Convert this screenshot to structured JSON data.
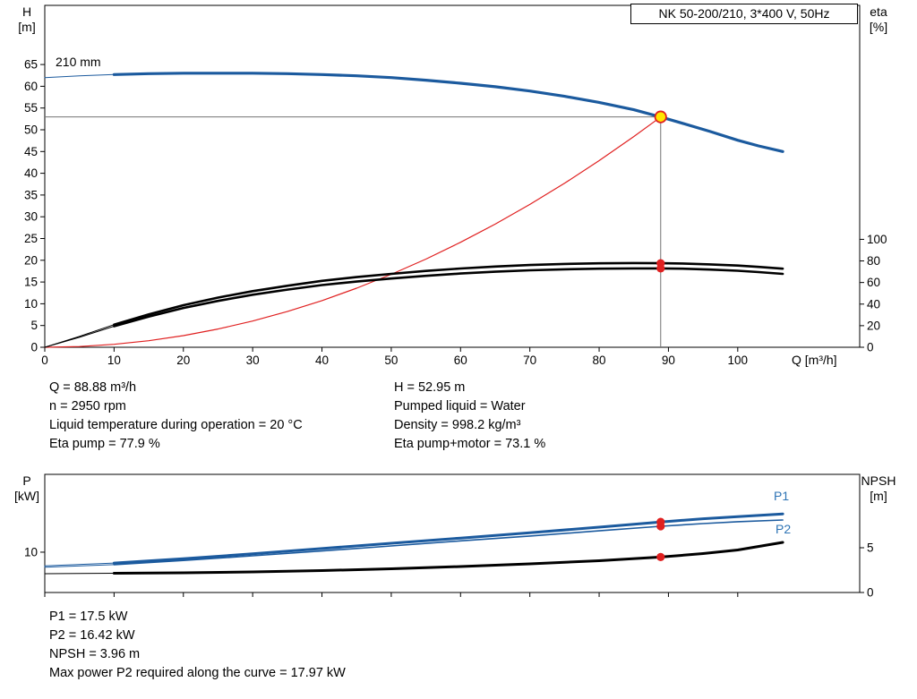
{
  "operating_info": {
    "left": [
      "Q = 88.88 m³/h",
      "n = 2950 rpm",
      "Liquid temperature during operation = 20 °C",
      "Eta pump = 77.9 %"
    ],
    "right": [
      "H = 52.95 m",
      "Pumped liquid = Water",
      "Density = 998.2 kg/m³",
      "Eta pump+motor = 73.1 %"
    ]
  },
  "result_info": [
    "P1 = 17.5 kW",
    "P2 = 16.42 kW",
    "NPSH = 3.96 m",
    "Max power P2 required along the curve = 17.97 kW"
  ],
  "chart_data": [
    {
      "type": "line",
      "title": "NK 50-200/210, 3*400 V, 50Hz",
      "grid": false,
      "x_axis": {
        "label": "Q [m³/h]",
        "range": [
          0,
          117.6
        ],
        "ticks": [
          0,
          10,
          20,
          30,
          40,
          50,
          60,
          70,
          80,
          90,
          100
        ],
        "show_labels": true
      },
      "y_left": {
        "label_lines": [
          "H",
          "[m]"
        ],
        "range": [
          0,
          78.6
        ],
        "ticks": [
          0,
          5,
          10,
          15,
          20,
          25,
          30,
          35,
          40,
          45,
          50,
          55,
          60,
          65
        ]
      },
      "y_right": {
        "label_lines": [
          "eta",
          "[%]"
        ],
        "range": [
          0,
          316.8
        ],
        "ticks": [
          0,
          20,
          40,
          60,
          80,
          100
        ]
      },
      "crosshair": {
        "x": 88.88,
        "y": 52.95,
        "color": "#737373"
      },
      "series": [
        {
          "name": "210 mm",
          "axis": "left",
          "color": "#1b5a9e",
          "width": 3.2,
          "thin_until": 10,
          "x": [
            0,
            5,
            10,
            15,
            20,
            25,
            30,
            35,
            40,
            45,
            50,
            55,
            60,
            65,
            70,
            75,
            80,
            85,
            88.88,
            92,
            96,
            100,
            103,
            106.5
          ],
          "y": [
            62,
            62.4,
            62.7,
            62.9,
            63,
            63,
            63,
            62.9,
            62.7,
            62.4,
            62,
            61.4,
            60.7,
            59.9,
            58.9,
            57.7,
            56.3,
            54.6,
            52.95,
            51.5,
            49.6,
            47.6,
            46.3,
            45
          ]
        },
        {
          "name": "System curve",
          "axis": "left",
          "color": "#e02020",
          "width": 1.2,
          "x": [
            0,
            5,
            10,
            15,
            20,
            25,
            30,
            35,
            40,
            45,
            50,
            55,
            60,
            65,
            70,
            75,
            80,
            85,
            88.88
          ],
          "y": [
            0,
            0.17,
            0.67,
            1.51,
            2.68,
            4.19,
            6.03,
            8.21,
            10.72,
            13.57,
            16.76,
            20.27,
            24.13,
            28.32,
            32.84,
            37.7,
            42.9,
            48.43,
            52.95
          ]
        },
        {
          "name": "Eta pump",
          "axis": "right",
          "color": "#000000",
          "width": 2.6,
          "thin_until": 10,
          "x": [
            0,
            5,
            10,
            15,
            20,
            25,
            30,
            35,
            40,
            45,
            50,
            55,
            60,
            65,
            70,
            75,
            80,
            85,
            88.88,
            92,
            96,
            100,
            103,
            106.5
          ],
          "y": [
            0,
            10,
            21,
            30.5,
            39,
            46,
            52,
            57,
            61.5,
            65,
            68,
            70.7,
            73,
            74.8,
            76.2,
            77.2,
            77.8,
            78,
            77.9,
            77.6,
            76.8,
            75.7,
            74.5,
            72.8
          ]
        },
        {
          "name": "Eta pump+motor",
          "axis": "right",
          "color": "#000000",
          "width": 2.6,
          "thin_until": 10,
          "x": [
            0,
            5,
            10,
            15,
            20,
            25,
            30,
            35,
            40,
            45,
            50,
            55,
            60,
            65,
            70,
            75,
            80,
            85,
            88.88,
            92,
            96,
            100,
            103,
            106.5
          ],
          "y": [
            0,
            9.2,
            19.5,
            28.4,
            36.4,
            43,
            48.7,
            53.4,
            57.6,
            60.9,
            63.7,
            66.2,
            68.3,
            70,
            71.3,
            72.2,
            72.8,
            73.1,
            73.1,
            72.8,
            72,
            70.9,
            69.7,
            68
          ]
        }
      ],
      "markers": [
        {
          "name": "duty-point",
          "axis": "left",
          "x": 88.88,
          "y": 52.95,
          "style": "duty",
          "fill": "#ffe600",
          "stroke": "#e02020"
        },
        {
          "name": "eta-pump-point",
          "axis": "right",
          "x": 88.88,
          "y": 77.9,
          "style": "dot",
          "fill": "#e02020"
        },
        {
          "name": "eta-pump-motor-point",
          "axis": "right",
          "x": 88.88,
          "y": 73.1,
          "style": "dot",
          "fill": "#e02020"
        }
      ]
    },
    {
      "type": "line",
      "title": "",
      "grid": false,
      "x_axis": {
        "label": "",
        "range": [
          0,
          117.6
        ],
        "ticks": [
          0,
          10,
          20,
          30,
          40,
          50,
          60,
          70,
          80,
          90,
          100
        ],
        "show_labels": false
      },
      "y_left": {
        "label_lines": [
          "P",
          "[kW]"
        ],
        "range": [
          0,
          29.3
        ],
        "ticks": [
          10
        ]
      },
      "y_right": {
        "label_lines": [
          "NPSH",
          "[m]"
        ],
        "range": [
          0,
          13.2
        ],
        "ticks": [
          0,
          5
        ]
      },
      "series": [
        {
          "name": "P1",
          "axis": "left",
          "color": "#1b5a9e",
          "width": 3,
          "thin_until": 10,
          "x": [
            0,
            10,
            20,
            30,
            40,
            50,
            60,
            70,
            80,
            88.88,
            95,
            100,
            106.5
          ],
          "y": [
            6.6,
            7.3,
            8.4,
            9.6,
            10.9,
            12.2,
            13.5,
            14.8,
            16.2,
            17.5,
            18.3,
            18.8,
            19.5
          ]
        },
        {
          "name": "P2",
          "axis": "left",
          "color": "#1b5a9e",
          "width": 1.6,
          "thin_until": 10,
          "x": [
            0,
            10,
            20,
            30,
            40,
            50,
            60,
            70,
            80,
            88.88,
            95,
            100,
            106.5
          ],
          "y": [
            6.25,
            6.9,
            7.95,
            9.1,
            10.3,
            11.55,
            12.8,
            14,
            15.3,
            16.42,
            17.1,
            17.55,
            17.97
          ]
        },
        {
          "name": "NPSH",
          "axis": "right",
          "color": "#000000",
          "width": 3,
          "thin_until": 10,
          "x": [
            0,
            10,
            20,
            30,
            40,
            50,
            60,
            70,
            80,
            88.88,
            95,
            100,
            106.5
          ],
          "y": [
            2.1,
            2.15,
            2.2,
            2.3,
            2.45,
            2.65,
            2.9,
            3.2,
            3.55,
            3.96,
            4.35,
            4.75,
            5.6
          ]
        }
      ],
      "markers": [
        {
          "name": "p1-point",
          "axis": "left",
          "x": 88.88,
          "y": 17.5,
          "style": "dot",
          "fill": "#e02020"
        },
        {
          "name": "p2-point",
          "axis": "left",
          "x": 88.88,
          "y": 16.42,
          "style": "dot",
          "fill": "#e02020"
        },
        {
          "name": "npsh-point",
          "axis": "right",
          "x": 88.88,
          "y": 3.96,
          "style": "dot",
          "fill": "#e02020"
        }
      ]
    }
  ]
}
